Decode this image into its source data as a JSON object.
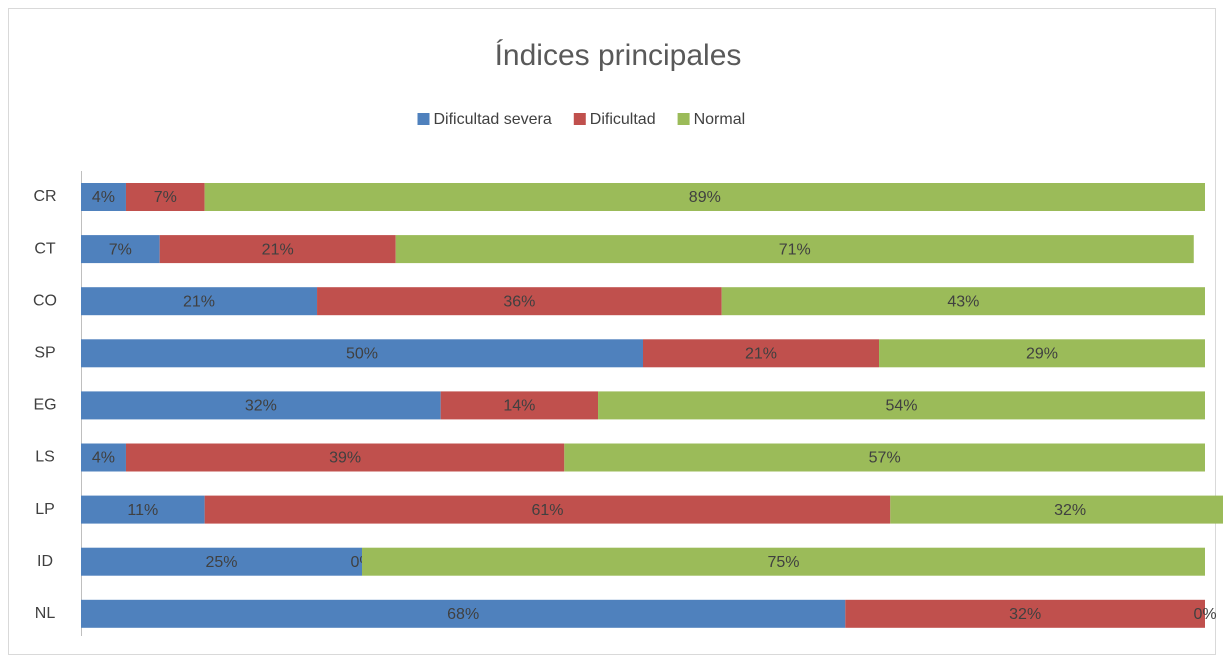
{
  "chart_data": {
    "type": "bar",
    "orientation": "horizontal",
    "stacked": true,
    "title": "Índices principales",
    "categories": [
      "CR",
      "CT",
      "CO",
      "SP",
      "EG",
      "LS",
      "LP",
      "ID",
      "NL"
    ],
    "series": [
      {
        "name": "Dificultad severa",
        "color": "#4f81bd",
        "values": [
          4,
          7,
          21,
          50,
          32,
          4,
          11,
          25,
          68
        ],
        "value_labels": [
          "4%",
          "7%",
          "21%",
          "50%",
          "32%",
          "4%",
          "11%",
          "25%",
          "68%"
        ]
      },
      {
        "name": "Dificultad",
        "color": "#c0504d",
        "values": [
          7,
          21,
          36,
          21,
          14,
          39,
          61,
          0,
          32
        ],
        "value_labels": [
          "7%",
          "21%",
          "36%",
          "21%",
          "14%",
          "39%",
          "61%",
          "0%",
          "32%"
        ]
      },
      {
        "name": "Normal",
        "color": "#9bbb59",
        "values": [
          89,
          71,
          43,
          29,
          54,
          57,
          32,
          75,
          0
        ],
        "value_labels": [
          "89%",
          "71%",
          "43%",
          "29%",
          "54%",
          "57%",
          "32%",
          "75%",
          "0%"
        ]
      }
    ],
    "xlim": [
      0,
      100
    ],
    "legend": "top"
  }
}
